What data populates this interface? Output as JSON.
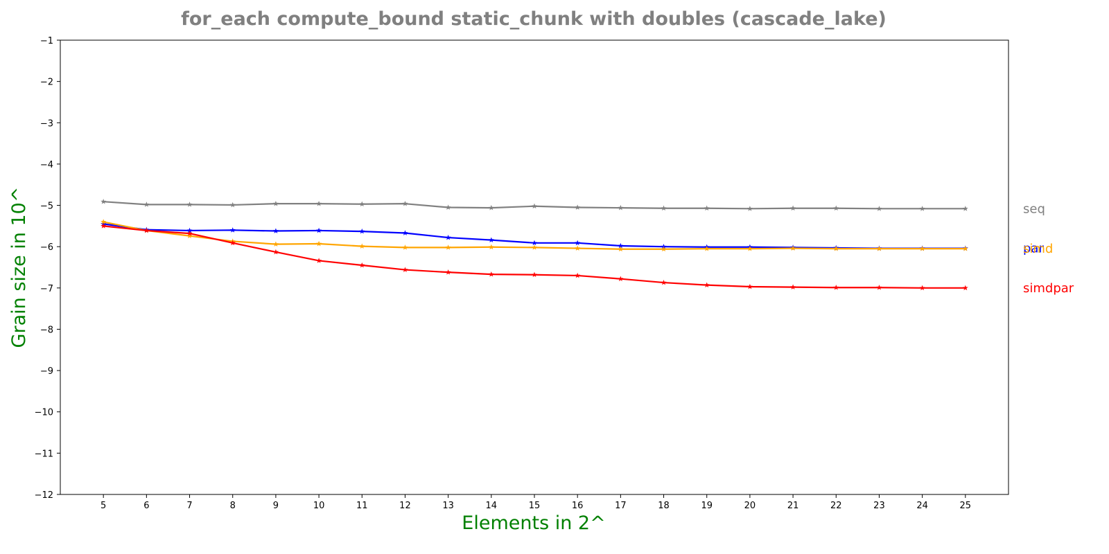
{
  "chart_data": {
    "type": "line",
    "title": "for_each compute_bound static_chunk with doubles  (cascade_lake)",
    "xlabel": "Elements in 2^",
    "ylabel": "Grain size in 10^",
    "x": [
      5,
      6,
      7,
      8,
      9,
      10,
      11,
      12,
      13,
      14,
      15,
      16,
      17,
      18,
      19,
      20,
      21,
      22,
      23,
      24,
      25
    ],
    "xlim": [
      4,
      26
    ],
    "ylim": [
      -12,
      -1
    ],
    "yticks": [
      -1,
      -2,
      -3,
      -4,
      -5,
      -6,
      -7,
      -8,
      -9,
      -10,
      -11,
      -12
    ],
    "ytick_labels": [
      "−1",
      "−2",
      "−3",
      "−4",
      "−5",
      "−6",
      "−7",
      "−8",
      "−9",
      "−10",
      "−11",
      "−12"
    ],
    "grid": false,
    "legend": "labels at right end of lines",
    "series": [
      {
        "name": "seq",
        "color": "#808080",
        "values": [
          -4.91,
          -4.98,
          -4.98,
          -4.99,
          -4.96,
          -4.96,
          -4.97,
          -4.96,
          -5.05,
          -5.06,
          -5.02,
          -5.05,
          -5.06,
          -5.07,
          -5.07,
          -5.08,
          -5.07,
          -5.07,
          -5.08,
          -5.08,
          -5.08
        ]
      },
      {
        "name": "par",
        "color": "#0000ff",
        "values": [
          -5.45,
          -5.59,
          -5.61,
          -5.6,
          -5.62,
          -5.61,
          -5.63,
          -5.67,
          -5.78,
          -5.84,
          -5.91,
          -5.91,
          -5.98,
          -6.0,
          -6.01,
          -6.01,
          -6.02,
          -6.03,
          -6.04,
          -6.04,
          -6.04
        ]
      },
      {
        "name": "simd",
        "color": "#ffa500",
        "values": [
          -5.4,
          -5.61,
          -5.74,
          -5.87,
          -5.94,
          -5.93,
          -5.99,
          -6.02,
          -6.02,
          -6.01,
          -6.02,
          -6.04,
          -6.06,
          -6.06,
          -6.05,
          -6.05,
          -6.04,
          -6.05,
          -6.05,
          -6.05,
          -6.05
        ]
      },
      {
        "name": "simdpar",
        "color": "#ff0000",
        "values": [
          -5.5,
          -5.61,
          -5.68,
          -5.91,
          -6.13,
          -6.34,
          -6.45,
          -6.56,
          -6.62,
          -6.67,
          -6.68,
          -6.7,
          -6.78,
          -6.87,
          -6.93,
          -6.97,
          -6.98,
          -6.99,
          -6.99,
          -7.0,
          -7.0
        ]
      }
    ]
  }
}
